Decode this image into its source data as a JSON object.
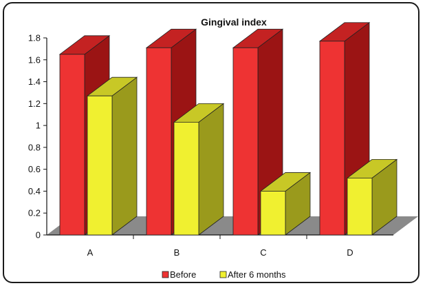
{
  "chart_data": {
    "type": "bar",
    "title": "Gingival index",
    "categories": [
      "A",
      "B",
      "C",
      "D"
    ],
    "series": [
      {
        "name": "Before",
        "values": [
          1.65,
          1.71,
          1.71,
          1.77
        ]
      },
      {
        "name": "After 6 months",
        "values": [
          1.27,
          1.03,
          0.4,
          0.52
        ]
      }
    ],
    "ylim": [
      0,
      1.8
    ],
    "yticks": [
      "0",
      "0.2",
      "0.4",
      "0.6",
      "0.8",
      "1",
      "1.2",
      "1.4",
      "1.6",
      "1.8"
    ],
    "legend_position": "bottom",
    "style": "3d-clustered",
    "colors": {
      "before_front": "#ee3333",
      "before_side": "#9b1414",
      "before_top": "#c42222",
      "after_front": "#f0f030",
      "after_side": "#9a9a1c",
      "after_top": "#c8c826",
      "floor": "#8a8a8a"
    }
  }
}
